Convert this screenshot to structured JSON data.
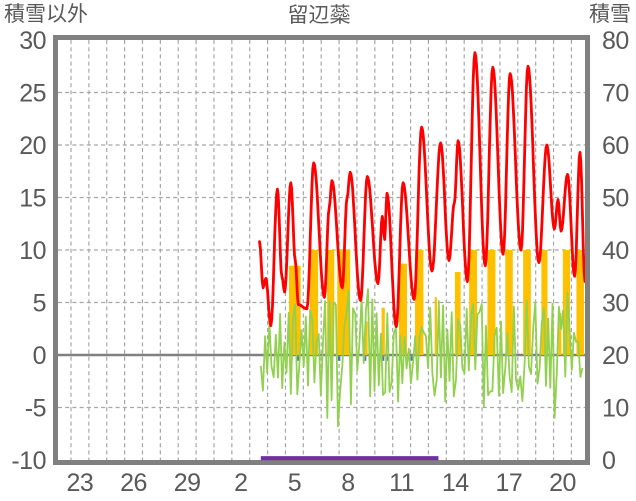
{
  "header": {
    "left_axis_title": "積雪以外",
    "station_title": "留辺蘂",
    "right_axis_title": "積雪"
  },
  "chart_data": {
    "type": "line",
    "title": "留辺蘂",
    "left_axis": {
      "title": "積雪以外",
      "tick_labels": [
        "30",
        "25",
        "20",
        "15",
        "10",
        "5",
        "0",
        "-5",
        "-10"
      ],
      "tick_values": [
        30,
        25,
        20,
        15,
        10,
        5,
        0,
        -5,
        -10
      ],
      "range": [
        -10,
        30
      ],
      "gridline_values": [
        25,
        20,
        15,
        10,
        5,
        -5
      ]
    },
    "right_axis": {
      "title": "積雪",
      "tick_labels": [
        "80",
        "70",
        "60",
        "50",
        "40",
        "30",
        "20",
        "10",
        "0"
      ],
      "tick_values": [
        80,
        70,
        60,
        50,
        40,
        30,
        20,
        10,
        0
      ],
      "range": [
        0,
        80
      ]
    },
    "x_axis": {
      "tick_labels": [
        "23",
        "26",
        "29",
        "2",
        "5",
        "8",
        "11",
        "14",
        "17",
        "20"
      ],
      "tick_day_positions": [
        -6.5,
        -3.5,
        -0.5,
        2.5,
        5.5,
        8.5,
        11.5,
        14.5,
        17.5,
        20.5
      ],
      "gridline_day_start": -7,
      "gridline_day_end": 21,
      "domain_days": [
        -7.727,
        21.76
      ],
      "grid_on": true
    },
    "colors": {
      "red_line": "#ff0000",
      "orange_bars": "#ffc000",
      "green_line": "#92d050",
      "purple_line": "#7030a0",
      "blue_marks": "#4472c4",
      "grid": "#a6a6a6",
      "axis_frame": "#808080",
      "text": "#595959"
    },
    "series": {
      "red_line": {
        "axis": "left",
        "anchors": [
          [
            3.55,
            10.8
          ],
          [
            3.75,
            6.4
          ],
          [
            3.9,
            7.3
          ],
          [
            4.18,
            2.8
          ],
          [
            4.55,
            15.8
          ],
          [
            4.8,
            7.5
          ],
          [
            4.95,
            6.0
          ],
          [
            5.3,
            16.4
          ],
          [
            5.55,
            9.0
          ],
          [
            5.72,
            4.8
          ],
          [
            6.2,
            4.4
          ],
          [
            6.58,
            18.3
          ],
          [
            7.18,
            5.5
          ],
          [
            7.45,
            14.0
          ],
          [
            7.6,
            16.6
          ],
          [
            8.18,
            6.4
          ],
          [
            8.45,
            15.0
          ],
          [
            8.62,
            17.4
          ],
          [
            9.2,
            5.2
          ],
          [
            9.58,
            17.0
          ],
          [
            10.18,
            6.8
          ],
          [
            10.42,
            13.2
          ],
          [
            10.55,
            11.0
          ],
          [
            10.68,
            15.4
          ],
          [
            11.2,
            2.7
          ],
          [
            11.58,
            16.4
          ],
          [
            12.2,
            5.3
          ],
          [
            12.62,
            21.7
          ],
          [
            13.2,
            8.0
          ],
          [
            13.68,
            20.2
          ],
          [
            14.15,
            9.0
          ],
          [
            14.45,
            14.5
          ],
          [
            14.66,
            20.4
          ],
          [
            15.18,
            7.0
          ],
          [
            15.6,
            28.8
          ],
          [
            16.18,
            8.5
          ],
          [
            16.6,
            27.4
          ],
          [
            17.18,
            9.6
          ],
          [
            17.57,
            26.8
          ],
          [
            18.18,
            10.0
          ],
          [
            18.57,
            27.5
          ],
          [
            19.18,
            8.8
          ],
          [
            19.62,
            20.0
          ],
          [
            20.05,
            12.0
          ],
          [
            20.25,
            14.8
          ],
          [
            20.42,
            11.8
          ],
          [
            20.78,
            17.2
          ],
          [
            21.18,
            7.5
          ],
          [
            21.48,
            19.3
          ],
          [
            21.76,
            7.0
          ]
        ]
      },
      "orange_bars": {
        "axis": "left",
        "bars": [
          [
            5.2,
            5.85,
            8.5
          ],
          [
            6.37,
            6.82,
            10
          ],
          [
            7.33,
            7.73,
            10
          ],
          [
            7.9,
            8.62,
            10
          ],
          [
            9.45,
            9.6,
            3.2
          ],
          [
            10.38,
            10.56,
            4.5
          ],
          [
            11.35,
            11.8,
            8.7
          ],
          [
            12.25,
            12.72,
            10
          ],
          [
            13.35,
            13.48,
            5.5
          ],
          [
            14.48,
            14.8,
            7.9
          ],
          [
            15.28,
            15.72,
            10
          ],
          [
            16.3,
            16.75,
            10
          ],
          [
            17.3,
            17.72,
            10
          ],
          [
            18.3,
            18.73,
            10
          ],
          [
            19.32,
            19.66,
            10
          ],
          [
            20.28,
            20.44,
            4
          ],
          [
            20.52,
            20.92,
            10
          ],
          [
            21.28,
            21.7,
            10
          ]
        ]
      },
      "green_line": {
        "axis": "left",
        "start_day": 3.62,
        "end_day": 21.72,
        "step_days": 0.12,
        "seed": 7,
        "daily_envelope": [
          [
            3,
            3.5,
            4.5
          ],
          [
            4,
            4.0,
            3.5
          ],
          [
            5,
            5.0,
            4.0
          ],
          [
            6,
            4.5,
            5.5
          ],
          [
            7,
            5.5,
            7.0
          ],
          [
            8,
            6.3,
            5.5
          ],
          [
            9,
            6.3,
            4.0
          ],
          [
            10,
            4.0,
            4.5
          ],
          [
            11,
            3.0,
            7.0
          ],
          [
            12,
            3.5,
            3.0
          ],
          [
            13,
            5.5,
            4.5
          ],
          [
            14,
            4.5,
            4.0
          ],
          [
            15,
            5.0,
            3.5
          ],
          [
            16,
            4.5,
            5.0
          ],
          [
            17,
            5.0,
            4.0
          ],
          [
            18,
            6.5,
            4.5
          ],
          [
            19,
            6.0,
            5.0
          ],
          [
            20,
            6.0,
            8.0
          ],
          [
            21,
            4.0,
            6.0
          ]
        ]
      },
      "blue_marks": {
        "axis": "left",
        "days": [
          5.7,
          8.0,
          9.45,
          9.73,
          10.46,
          10.74,
          12.08
        ]
      },
      "purple_line": {
        "axis": "right",
        "value": 0,
        "start_day": 3.62,
        "end_day": 13.56
      }
    }
  }
}
